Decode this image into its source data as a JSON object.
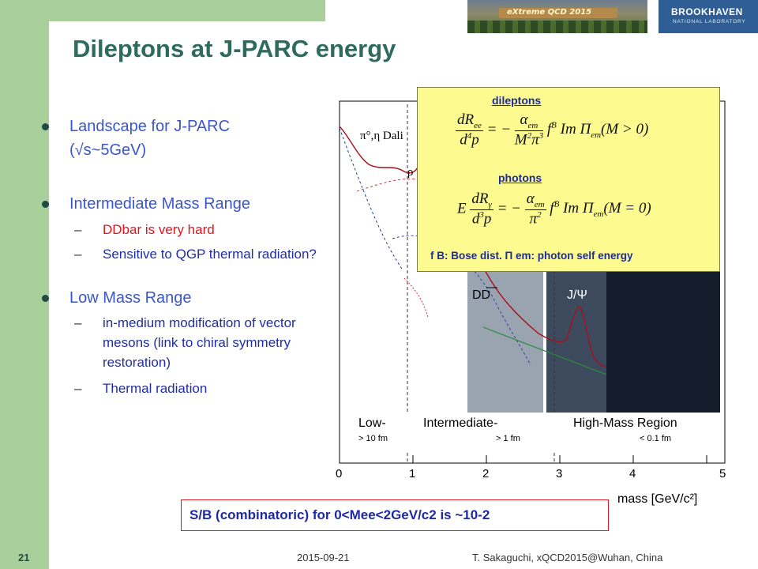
{
  "header": {
    "photo_caption": "eXtreme QCD 2015",
    "logo_line1": "BROOKHAVEN",
    "logo_line2": "NATIONAL LABORATORY"
  },
  "title": "Dileptons at J-PARC energy",
  "bullets": [
    {
      "text": "Landscape for J-PARC (√s~5GeV)",
      "subs": []
    },
    {
      "text": "Intermediate Mass Range",
      "subs": [
        {
          "text": "DDbar is very hard",
          "color": "#e0141b"
        },
        {
          "text": "Sensitive to QGP thermal radiation?"
        }
      ]
    },
    {
      "text": "Low Mass Range",
      "subs": [
        {
          "text": "in-medium modification of vector mesons (link to chiral symmetry restoration)"
        },
        {
          "text": "Thermal radiation"
        }
      ]
    }
  ],
  "plot": {
    "label_pi": "π°,η Dali",
    "label_rho": "ρ",
    "label_dd": "DD",
    "label_jpsi": "J/Ψ",
    "regions": [
      "Low-",
      "Intermediate-",
      "High-Mass Region"
    ],
    "region_scales": [
      "> 10 fm",
      "> 1 fm",
      "< 0.1 fm"
    ],
    "x_ticks": [
      "0",
      "1",
      "2",
      "3",
      "4",
      "5"
    ],
    "xlabel": "mass [GeV/c²]"
  },
  "inset": {
    "dileptons_label": "dileptons",
    "photons_label": "photons",
    "note": "f B: Bose dist.   Π em: photon self energy"
  },
  "sb_box": "S/B (combinatoric) for 0<Mee<2GeV/c2 is ~10-2",
  "footer": {
    "page": "21",
    "date": "2015-09-21",
    "author": "T. Sakaguchi, xQCD2015@Wuhan, China"
  },
  "colors": {
    "title": "#2e6b5e",
    "bullet_text": "#3a57c9",
    "accent_red": "#e0141b",
    "green_bar": "#a9cf9b"
  }
}
